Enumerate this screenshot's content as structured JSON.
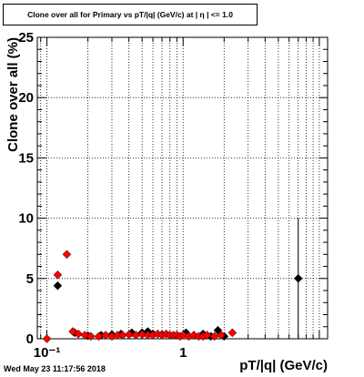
{
  "title": "Clone  over all for Primary vs pT/|q| (GeV/c) at |  η | <= 1.0",
  "footer": "Wed May 23 11:17:56 2018",
  "chart_data": {
    "type": "scatter",
    "title": "Clone  over all for Primary vs pT/|q| (GeV/c) at |  η | <= 1.0",
    "xlabel": "pT/|q| (GeV/c)",
    "ylabel": "Clone  over all (%)",
    "x_scale": "log",
    "xlim": [
      0.085,
      11.5
    ],
    "ylim": [
      0,
      25
    ],
    "x_tick_labels": [
      {
        "value": 0.1,
        "label": "10⁻¹"
      },
      {
        "value": 1,
        "label": "1"
      }
    ],
    "y_ticks": [
      0,
      5,
      10,
      15,
      20,
      25
    ],
    "grid": true,
    "series": [
      {
        "color": "#000000",
        "marker": "diamond",
        "points": [
          {
            "x": 0.12,
            "y": 4.4,
            "xerr": 0.007
          },
          {
            "x": 0.16,
            "y": 0.5
          },
          {
            "x": 0.2,
            "y": 0.25
          },
          {
            "x": 0.25,
            "y": 0.3
          },
          {
            "x": 0.3,
            "y": 0.35
          },
          {
            "x": 0.35,
            "y": 0.4
          },
          {
            "x": 0.42,
            "y": 0.5
          },
          {
            "x": 0.5,
            "y": 0.5
          },
          {
            "x": 0.55,
            "y": 0.6
          },
          {
            "x": 0.6,
            "y": 0.4
          },
          {
            "x": 0.7,
            "y": 0.35
          },
          {
            "x": 0.8,
            "y": 0.3
          },
          {
            "x": 0.9,
            "y": 0.3
          },
          {
            "x": 1.05,
            "y": 0.5
          },
          {
            "x": 1.2,
            "y": 0.3
          },
          {
            "x": 1.4,
            "y": 0.4
          },
          {
            "x": 1.6,
            "y": 0.2
          },
          {
            "x": 1.8,
            "y": 0.7
          },
          {
            "x": 2.0,
            "y": 0.2
          },
          {
            "x": 7.0,
            "y": 5.0,
            "yerr": 5.0
          }
        ]
      },
      {
        "color": "#ff0000",
        "marker": "diamond",
        "points": [
          {
            "x": 0.1,
            "y": 0.0
          },
          {
            "x": 0.12,
            "y": 5.3
          },
          {
            "x": 0.14,
            "y": 7.0
          },
          {
            "x": 0.155,
            "y": 0.6
          },
          {
            "x": 0.17,
            "y": 0.4
          },
          {
            "x": 0.19,
            "y": 0.3
          },
          {
            "x": 0.21,
            "y": 0.2
          },
          {
            "x": 0.24,
            "y": 0.2
          },
          {
            "x": 0.27,
            "y": 0.3
          },
          {
            "x": 0.3,
            "y": 0.2
          },
          {
            "x": 0.33,
            "y": 0.3
          },
          {
            "x": 0.36,
            "y": 0.3
          },
          {
            "x": 0.4,
            "y": 0.35
          },
          {
            "x": 0.45,
            "y": 0.3
          },
          {
            "x": 0.5,
            "y": 0.35
          },
          {
            "x": 0.55,
            "y": 0.3
          },
          {
            "x": 0.6,
            "y": 0.3
          },
          {
            "x": 0.65,
            "y": 0.4
          },
          {
            "x": 0.7,
            "y": 0.3
          },
          {
            "x": 0.75,
            "y": 0.4
          },
          {
            "x": 0.8,
            "y": 0.3
          },
          {
            "x": 0.85,
            "y": 0.3
          },
          {
            "x": 0.9,
            "y": 0.3
          },
          {
            "x": 0.95,
            "y": 0.2
          },
          {
            "x": 1.0,
            "y": 0.3
          },
          {
            "x": 1.1,
            "y": 0.2
          },
          {
            "x": 1.2,
            "y": 0.3
          },
          {
            "x": 1.3,
            "y": 0.2
          },
          {
            "x": 1.4,
            "y": 0.2
          },
          {
            "x": 1.5,
            "y": 0.3
          },
          {
            "x": 1.7,
            "y": 0.2
          },
          {
            "x": 1.9,
            "y": 0.3
          },
          {
            "x": 2.3,
            "y": 0.5
          }
        ]
      }
    ]
  }
}
